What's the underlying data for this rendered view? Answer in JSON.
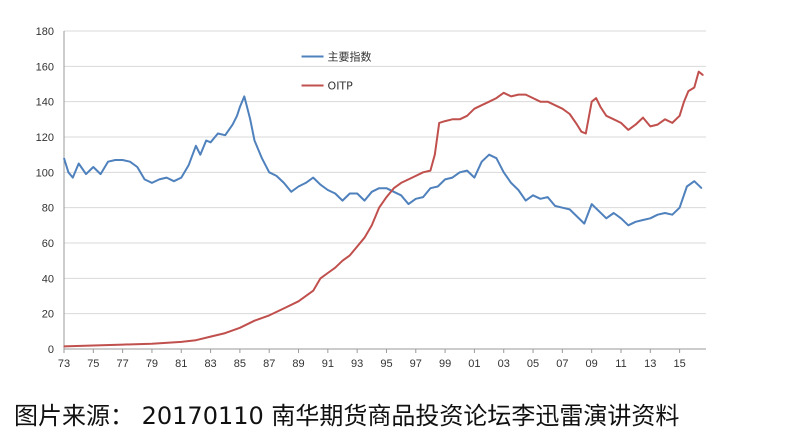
{
  "caption": "图片来源： 20170110 南华期货商品投资论坛李迅雷演讲资料",
  "chart_data": {
    "type": "line",
    "title": "",
    "xlabel": "",
    "ylabel": "",
    "ylim": [
      0,
      180
    ],
    "xlim": [
      1973,
      2016.8
    ],
    "yticks": [
      "0",
      "20",
      "40",
      "60",
      "80",
      "100",
      "120",
      "140",
      "160",
      "180"
    ],
    "xticks": [
      "73",
      "75",
      "77",
      "79",
      "81",
      "83",
      "85",
      "87",
      "89",
      "91",
      "93",
      "95",
      "97",
      "99",
      "01",
      "03",
      "05",
      "07",
      "09",
      "11",
      "13",
      "15"
    ],
    "grid": "horizontal",
    "legend": "top-left",
    "series": [
      {
        "name": "主要指数",
        "color": "#4f81bd",
        "x": [
          1973.0,
          1973.3,
          1973.6,
          1974.0,
          1974.5,
          1975.0,
          1975.5,
          1976.0,
          1976.5,
          1977.0,
          1977.5,
          1978.0,
          1978.5,
          1979.0,
          1979.5,
          1980.0,
          1980.5,
          1981.0,
          1981.5,
          1982.0,
          1982.3,
          1982.7,
          1983.0,
          1983.5,
          1984.0,
          1984.5,
          1984.8,
          1985.0,
          1985.3,
          1985.7,
          1986.0,
          1986.5,
          1987.0,
          1987.5,
          1988.0,
          1988.5,
          1989.0,
          1989.5,
          1990.0,
          1990.5,
          1991.0,
          1991.5,
          1992.0,
          1992.5,
          1993.0,
          1993.5,
          1994.0,
          1994.5,
          1995.0,
          1995.5,
          1996.0,
          1996.5,
          1997.0,
          1997.5,
          1998.0,
          1998.5,
          1999.0,
          1999.5,
          2000.0,
          2000.5,
          2001.0,
          2001.5,
          2002.0,
          2002.5,
          2003.0,
          2003.5,
          2004.0,
          2004.5,
          2005.0,
          2005.5,
          2006.0,
          2006.5,
          2007.0,
          2007.5,
          2008.0,
          2008.5,
          2009.0,
          2009.5,
          2010.0,
          2010.5,
          2011.0,
          2011.5,
          2012.0,
          2012.5,
          2013.0,
          2013.5,
          2014.0,
          2014.5,
          2015.0,
          2015.5,
          2016.0,
          2016.5
        ],
        "values": [
          108,
          100,
          97,
          105,
          99,
          103,
          99,
          106,
          107,
          107,
          106,
          103,
          96,
          94,
          96,
          97,
          95,
          97,
          104,
          115,
          110,
          118,
          117,
          122,
          121,
          127,
          132,
          137,
          143,
          130,
          118,
          108,
          100,
          98,
          94,
          89,
          92,
          94,
          97,
          93,
          90,
          88,
          84,
          88,
          88,
          84,
          89,
          91,
          91,
          89,
          87,
          82,
          85,
          86,
          91,
          92,
          96,
          97,
          100,
          101,
          97,
          106,
          110,
          108,
          100,
          94,
          90,
          84,
          87,
          85,
          86,
          81,
          80,
          79,
          75,
          71,
          82,
          78,
          74,
          77,
          74,
          70,
          72,
          73,
          74,
          76,
          77,
          76,
          80,
          92,
          95,
          91
        ],
        "label_pos": "left"
      },
      {
        "name": "OITP",
        "color": "#c0504d",
        "x": [
          1973.0,
          1975.0,
          1977.0,
          1979.0,
          1981.0,
          1982.0,
          1983.0,
          1984.0,
          1985.0,
          1986.0,
          1987.0,
          1988.0,
          1989.0,
          1990.0,
          1990.5,
          1991.0,
          1991.5,
          1992.0,
          1992.5,
          1993.0,
          1993.5,
          1994.0,
          1994.5,
          1995.0,
          1995.5,
          1996.0,
          1996.5,
          1997.0,
          1997.5,
          1998.0,
          1998.3,
          1998.6,
          1999.0,
          1999.5,
          2000.0,
          2000.5,
          2001.0,
          2001.5,
          2002.0,
          2002.5,
          2003.0,
          2003.5,
          2004.0,
          2004.5,
          2005.0,
          2005.5,
          2006.0,
          2006.5,
          2007.0,
          2007.5,
          2008.0,
          2008.3,
          2008.6,
          2009.0,
          2009.3,
          2009.6,
          2010.0,
          2010.5,
          2011.0,
          2011.5,
          2012.0,
          2012.5,
          2013.0,
          2013.5,
          2014.0,
          2014.5,
          2015.0,
          2015.3,
          2015.6,
          2016.0,
          2016.3,
          2016.6
        ],
        "values": [
          1.5,
          2,
          2.5,
          3,
          4,
          5,
          7,
          9,
          12,
          16,
          19,
          23,
          27,
          33,
          40,
          43,
          46,
          50,
          53,
          58,
          63,
          70,
          80,
          86,
          91,
          94,
          96,
          98,
          100,
          101,
          110,
          128,
          129,
          130,
          130,
          132,
          136,
          138,
          140,
          142,
          145,
          143,
          144,
          144,
          142,
          140,
          140,
          138,
          136,
          133,
          127,
          123,
          122,
          140,
          142,
          137,
          132,
          130,
          128,
          124,
          127,
          131,
          126,
          127,
          130,
          128,
          132,
          140,
          146,
          148,
          157,
          155
        ],
        "label_pos": "right"
      }
    ]
  }
}
